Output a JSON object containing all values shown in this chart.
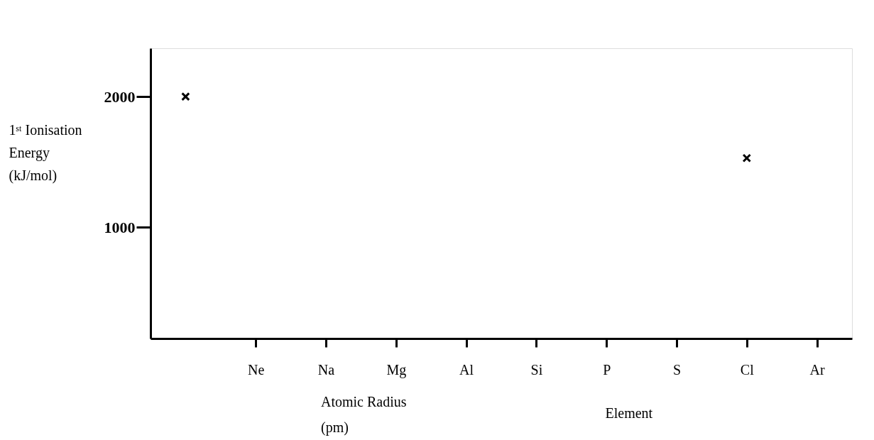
{
  "chart_data": {
    "type": "scatter",
    "xlabel": "Element",
    "ylabel": "1ˢᵗ Ionisation Energy (kJ/mol)",
    "categories": [
      null,
      "Ne",
      "Na",
      "Mg",
      "Al",
      "Si",
      "P",
      "S",
      "Cl",
      "Ar"
    ],
    "values": [
      2000,
      null,
      null,
      null,
      null,
      null,
      null,
      null,
      1530,
      null
    ],
    "color": "#000000",
    "marker": "cross",
    "ylim": [
      150,
      2370
    ],
    "yticks": [
      1000,
      2000
    ],
    "grid": false,
    "annotations": [
      "Atomic Radius (pm)"
    ]
  }
}
